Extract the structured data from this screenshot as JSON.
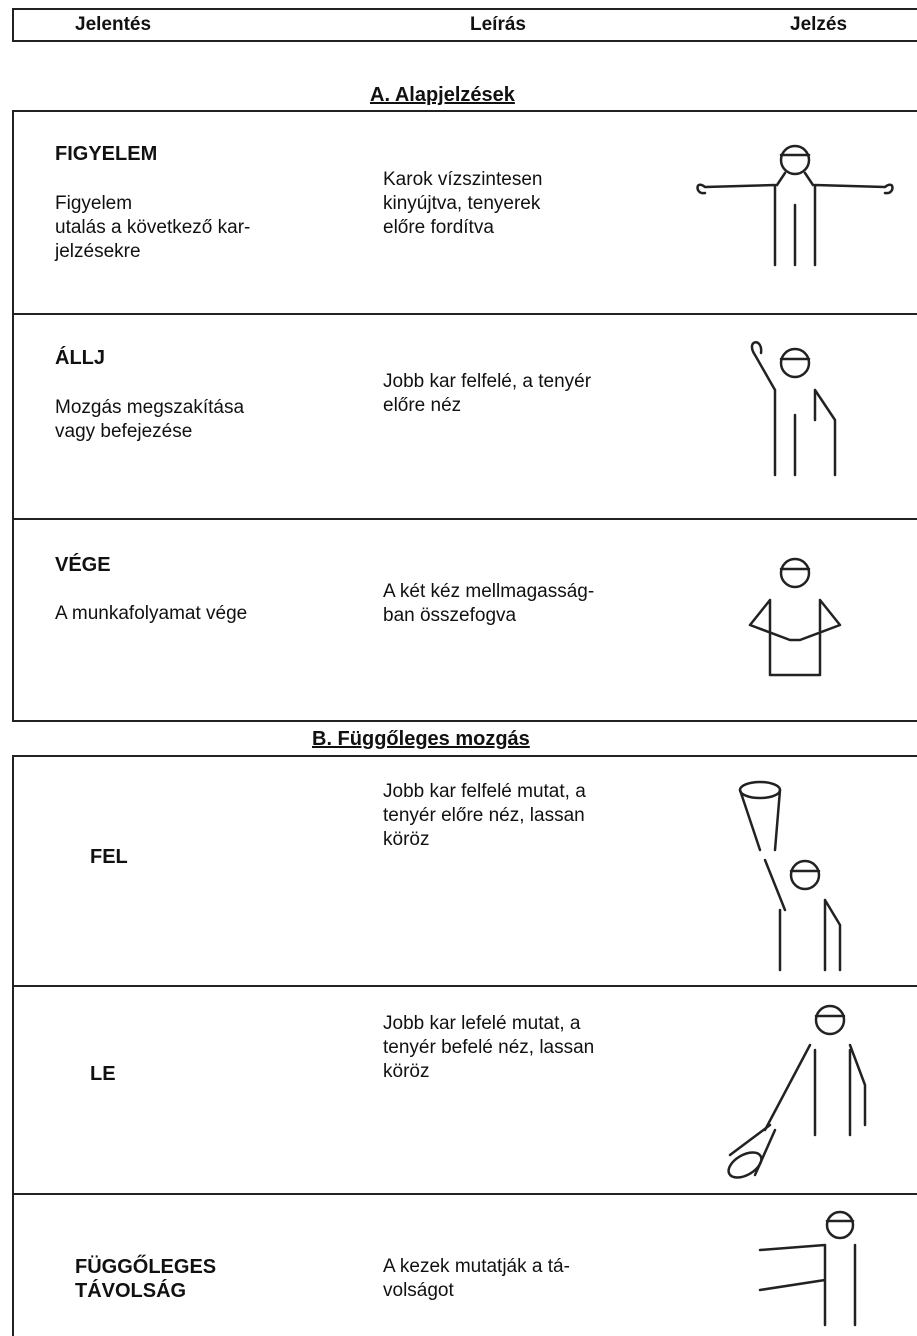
{
  "header": {
    "columns": [
      "Jelentés",
      "Leírás",
      "Jelzés"
    ]
  },
  "sections": [
    {
      "title": "A. Alapjelzések",
      "rows": [
        {
          "signal": "FIGYELEM",
          "meaning": "Figyelem\nutalás a következő kar-\njelzésekre",
          "description": "Karok vízszintesen\nkinyújtva, tenyerek\nelőre fordítva"
        },
        {
          "signal": "ÁLLJ",
          "meaning": "Mozgás megszakítása\nvagy befejezése",
          "description": "Jobb kar felfelé, a tenyér\nelőre néz"
        },
        {
          "signal": "VÉGE",
          "meaning": "A munkafolyamat vége",
          "description": "A két kéz mellmagasság-\nban összefogva"
        }
      ]
    },
    {
      "title": "B. Függőleges mozgás",
      "rows": [
        {
          "signal": "FEL",
          "description": "Jobb kar felfelé mutat, a\ntenyér előre néz, lassan\nköröz"
        },
        {
          "signal": "LE",
          "description": "Jobb kar lefelé mutat, a\ntenyér befelé néz, lassan\nköröz"
        },
        {
          "signal": "FÜGGŐLEGES\nTÁVOLSÁG",
          "description": "A kezek mutatják a tá-\nvolságot"
        }
      ]
    }
  ]
}
